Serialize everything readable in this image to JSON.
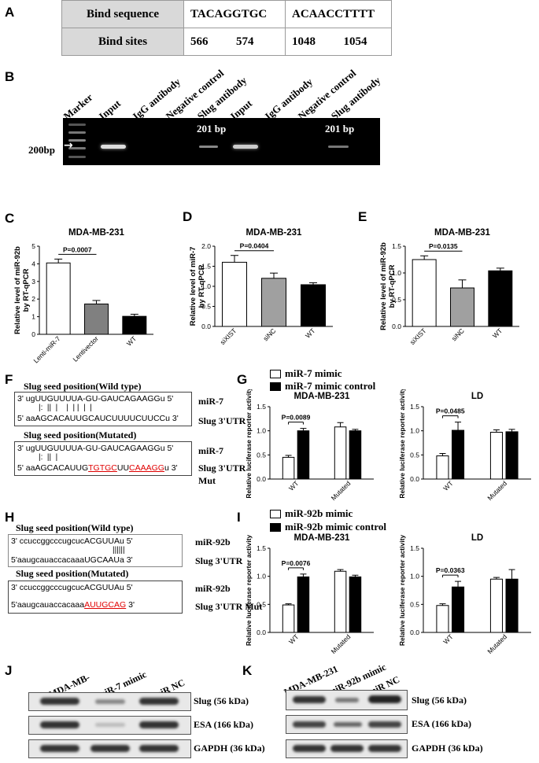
{
  "panels": {
    "A": "A",
    "B": "B",
    "C": "C",
    "D": "D",
    "E": "E",
    "F": "F",
    "G": "G",
    "H": "H",
    "I": "I",
    "J": "J",
    "K": "K"
  },
  "tableA": {
    "row1": {
      "header": "Bind sequence",
      "seq1": "TACAGGTGC",
      "seq2": "ACAACCTTTT"
    },
    "row2": {
      "header": "Bind sites",
      "s1a": "566",
      "s1b": "574",
      "s2a": "1048",
      "s2b": "1054"
    }
  },
  "gelB": {
    "lanes": [
      "Marker",
      "Input",
      "IgG antibody",
      "Negative control",
      "Slug  antibody",
      "Input",
      "IgG antibody",
      "Negative  control",
      "Slug  antibody"
    ],
    "band_label_left": "201 bp",
    "band_label_right": "201 bp",
    "size_marker": "200bp",
    "arrow": "→"
  },
  "chart_data": [
    {
      "id": "C",
      "type": "bar",
      "title": "MDA-MB-231",
      "ylabel": "Relative level of miR-92b by RT-qPCR",
      "categories": [
        "Lenti-miR-7",
        "Lentivector",
        "WT"
      ],
      "values": [
        4.05,
        1.72,
        1.02
      ],
      "errors": [
        0.22,
        0.2,
        0.12
      ],
      "colors": [
        "#ffffff",
        "#808080",
        "#000000"
      ],
      "ylim": [
        0,
        5
      ],
      "yticks": [
        "0",
        "1",
        "2",
        "3",
        "4",
        "5"
      ],
      "annotation": "P=0.0007"
    },
    {
      "id": "D",
      "type": "bar",
      "title": "MDA-MB-231",
      "ylabel": "Relative level of miR-7 by RT-qPCR",
      "categories": [
        "siXIST",
        "siNC",
        "WT"
      ],
      "values": [
        1.6,
        1.2,
        1.04
      ],
      "errors": [
        0.17,
        0.13,
        0.05
      ],
      "colors": [
        "#ffffff",
        "#a0a0a0",
        "#000000"
      ],
      "ylim": [
        0,
        2.0
      ],
      "yticks": [
        "0.0",
        "0.5",
        "1.0",
        "1.5",
        "2.0"
      ],
      "annotation": "P=0.0404"
    },
    {
      "id": "E",
      "type": "bar",
      "title": "MDA-MB-231",
      "ylabel": "Relative level of miR-92b by RT-qPCR",
      "categories": [
        "siXIST",
        "siNC",
        "WT"
      ],
      "values": [
        1.25,
        0.72,
        1.04
      ],
      "errors": [
        0.07,
        0.15,
        0.05
      ],
      "colors": [
        "#ffffff",
        "#a0a0a0",
        "#000000"
      ],
      "ylim": [
        0,
        1.5
      ],
      "yticks": [
        "0.0",
        "0.5",
        "1.0",
        "1.5"
      ],
      "annotation": "P=0.0135"
    },
    {
      "id": "G1",
      "type": "bar",
      "title": "MDA-MB-231",
      "ylabel": "Relative luciferase reporter activity",
      "categories": [
        "WT",
        "Mutated"
      ],
      "series": [
        {
          "name": "miR-7 mimic",
          "values": [
            0.45,
            1.08
          ],
          "errors": [
            0.04,
            0.09
          ]
        },
        {
          "name": "miR-7 mimic control",
          "values": [
            1.0,
            1.0
          ],
          "errors": [
            0.05,
            0.03
          ]
        }
      ],
      "ylim": [
        0,
        1.5
      ],
      "yticks": [
        "0.0",
        "0.5",
        "1.0",
        "1.5"
      ],
      "annotation": "P=0.0089"
    },
    {
      "id": "G2",
      "type": "bar",
      "title": "LD",
      "ylabel": "Relative luciferase reporter activity",
      "categories": [
        "WT",
        "Mutated"
      ],
      "series": [
        {
          "name": "miR-7 mimic",
          "values": [
            0.48,
            0.97
          ],
          "errors": [
            0.05,
            0.05
          ]
        },
        {
          "name": "miR-7 mimic control",
          "values": [
            1.01,
            0.98
          ],
          "errors": [
            0.17,
            0.05
          ]
        }
      ],
      "ylim": [
        0,
        1.5
      ],
      "yticks": [
        "0.0",
        "0.5",
        "1.0",
        "1.5"
      ],
      "annotation": "P=0.0485"
    },
    {
      "id": "I1",
      "type": "bar",
      "title": "MDA-MB-231",
      "ylabel": "Relative luciferase reporter activity",
      "categories": [
        "WT",
        "Mutated"
      ],
      "series": [
        {
          "name": "miR-92b mimic",
          "values": [
            0.49,
            1.09
          ],
          "errors": [
            0.02,
            0.03
          ]
        },
        {
          "name": "miR-92b mimic control",
          "values": [
            0.99,
            0.99
          ],
          "errors": [
            0.05,
            0.03
          ]
        }
      ],
      "ylim": [
        0,
        1.5
      ],
      "yticks": [
        "0.0",
        "0.5",
        "1.0",
        "1.5"
      ],
      "annotation": "P=0.0076"
    },
    {
      "id": "I2",
      "type": "bar",
      "title": "LD",
      "ylabel": "Relative luciferase reporter activity",
      "categories": [
        "WT",
        "Mutated"
      ],
      "series": [
        {
          "name": "miR-92b mimic",
          "values": [
            0.48,
            0.95
          ],
          "errors": [
            0.03,
            0.03
          ]
        },
        {
          "name": "miR-92b mimic control",
          "values": [
            0.81,
            0.95
          ],
          "errors": [
            0.1,
            0.17
          ]
        }
      ],
      "ylim": [
        0,
        1.5
      ],
      "yticks": [
        "0.0",
        "0.5",
        "1.0",
        "1.5"
      ],
      "annotation": "P=0.0363"
    }
  ],
  "legendG": {
    "mimic": "miR-7 mimic",
    "control": "miR-7 mimic control"
  },
  "legendI": {
    "mimic": "miR-92b mimic",
    "control": "miR-92b mimic control"
  },
  "panelF": {
    "wt_title": "Slug seed position(Wild type)",
    "mut_title": "Slug seed position(Mutated)",
    "mir_seq": "3' ugUUGUUUUA-GU-GAUCAGAAGGu 5'",
    "wt_pairs": "|:  ||  |    |  | |  |  |",
    "wt_utr": "5' aaAGCACAUUGCAUCUUUUCUUCCu 3'",
    "mut_pairs": "|:  ||  |",
    "mut_utr_pre": "5' aaAGCACAUUG",
    "mut_utr_r1": "TGTGC",
    "mut_utr_mid": "UU",
    "mut_utr_r2": "CAAAGG",
    "mut_utr_post": "u 3'",
    "mir_label": "miR-7",
    "utr_label": "Slug 3'UTR",
    "utr_mut_label_1": "Slug 3'UTR",
    "utr_mut_label_2": "Mut"
  },
  "panelH": {
    "wt_title": "Slug seed position(Wild type)",
    "mut_title": "Slug seed position(Mutated)",
    "mir_seq": "3' ccuccggcccugcucACGUUAu 5'",
    "wt_pairs": "||||||",
    "wt_utr": "5'aaugcauaccacaaaUGCAAUa 3'",
    "mut_utr_pre": "5'aaugcauaccacaaa",
    "mut_utr_red": "AUUGCAG",
    "mut_utr_post": " 3'",
    "mir_label": "miR-92b",
    "utr_label": "Slug 3'UTR",
    "utr_mut_label": "Slug 3'UTR Mut"
  },
  "blotJ": {
    "lanes": [
      "MDA-MB-",
      "miR-7 mimic",
      "miR NC"
    ],
    "rows": [
      "Slug (56 kDa)",
      "ESA (166 kDa)",
      "GAPDH (36 kDa)"
    ]
  },
  "blotK": {
    "lanes": [
      "MDA-MB-231",
      "miR-92b mimic",
      "miR NC"
    ],
    "rows": [
      "Slug (56 kDa)",
      "ESA (166 kDa)",
      "GAPDH (36 kDa)"
    ]
  }
}
